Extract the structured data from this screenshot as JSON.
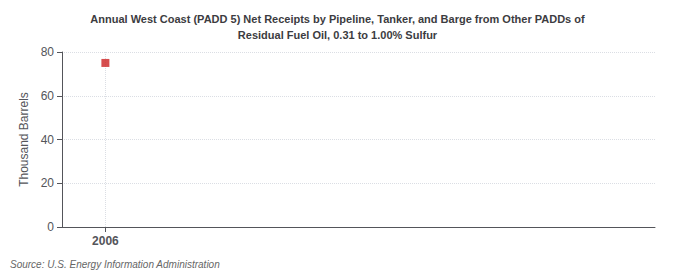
{
  "chart_data": {
    "type": "scatter",
    "title": "Annual West Coast (PADD 5) Net Receipts by Pipeline, Tanker, and Barge from Other PADDs of\nResidual Fuel Oil, 0.31 to 1.00% Sulfur",
    "ylabel": "Thousand Barrels",
    "annotation": "Source: U.S. Energy Information Administration",
    "x": [
      2006
    ],
    "values": [
      75
    ],
    "color": "#cc2222",
    "marker": "square",
    "xlim": [
      2005.4,
      2013.6
    ],
    "xticks": [
      2006
    ],
    "ylim": [
      0,
      80
    ],
    "yticks": [
      0,
      20,
      40,
      60,
      80
    ],
    "grid": true
  }
}
